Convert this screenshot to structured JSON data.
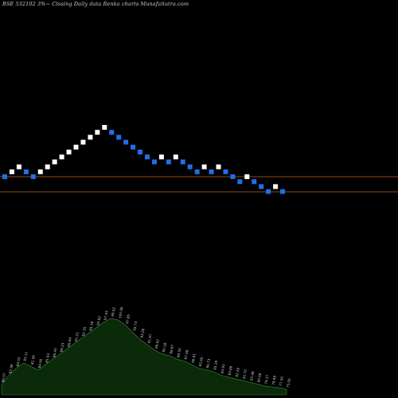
{
  "chart_data": {
    "type": "renko",
    "title": "BSE 532102  3%~  Closing Daily data  Renko  charts MunafaSutra.com",
    "colors": {
      "background": "#000000",
      "up_brick": "#ffffff",
      "down_brick": "#1e6fe8",
      "reference_line": "#c0621b",
      "volume_fill": "#0a2a0a",
      "volume_line": "#3a8a3a",
      "volume_label": "#d0d0d0"
    },
    "reference_lines": [
      {
        "name": "upper",
        "y": 0.0
      },
      {
        "name": "lower",
        "y": -1.0
      }
    ],
    "bricks": [
      {
        "dir": "down",
        "level": 0
      },
      {
        "dir": "up",
        "level": 1
      },
      {
        "dir": "up",
        "level": 2
      },
      {
        "dir": "down",
        "level": 1
      },
      {
        "dir": "down",
        "level": 0
      },
      {
        "dir": "up",
        "level": 1
      },
      {
        "dir": "up",
        "level": 2
      },
      {
        "dir": "up",
        "level": 3
      },
      {
        "dir": "up",
        "level": 4
      },
      {
        "dir": "up",
        "level": 5
      },
      {
        "dir": "up",
        "level": 6
      },
      {
        "dir": "up",
        "level": 7
      },
      {
        "dir": "up",
        "level": 8
      },
      {
        "dir": "up",
        "level": 9
      },
      {
        "dir": "up",
        "level": 10
      },
      {
        "dir": "down",
        "level": 9
      },
      {
        "dir": "down",
        "level": 8
      },
      {
        "dir": "down",
        "level": 7
      },
      {
        "dir": "down",
        "level": 6
      },
      {
        "dir": "down",
        "level": 5
      },
      {
        "dir": "down",
        "level": 4
      },
      {
        "dir": "down",
        "level": 3
      },
      {
        "dir": "up",
        "level": 4
      },
      {
        "dir": "down",
        "level": 3
      },
      {
        "dir": "up",
        "level": 4
      },
      {
        "dir": "down",
        "level": 3
      },
      {
        "dir": "down",
        "level": 2
      },
      {
        "dir": "down",
        "level": 1
      },
      {
        "dir": "up",
        "level": 2
      },
      {
        "dir": "down",
        "level": 1
      },
      {
        "dir": "up",
        "level": 2
      },
      {
        "dir": "down",
        "level": 1
      },
      {
        "dir": "down",
        "level": 0
      },
      {
        "dir": "down",
        "level": -1
      },
      {
        "dir": "up",
        "level": 0
      },
      {
        "dir": "down",
        "level": -1
      },
      {
        "dir": "down",
        "level": -2
      },
      {
        "dir": "down",
        "level": -3
      },
      {
        "dir": "up",
        "level": -2
      },
      {
        "dir": "down",
        "level": -3
      }
    ],
    "volume_profile": [
      12,
      22,
      30,
      36,
      32,
      28,
      34,
      40,
      46,
      52,
      58,
      64,
      70,
      76,
      82,
      86,
      84,
      78,
      70,
      62,
      56,
      50,
      46,
      44,
      40,
      38,
      34,
      30,
      28,
      26,
      22,
      20,
      18,
      16,
      14,
      12,
      10,
      9,
      8,
      6
    ],
    "volume_labels": [
      "86.07",
      "82.96",
      "84.02",
      "83.11",
      "81.58",
      "84.00",
      "85.63",
      "86.43",
      "88.23",
      "89.84",
      "91.21",
      "92.35",
      "94.18",
      "95.62",
      "97.43",
      "99.02",
      "100.96",
      "97.85",
      "95.73",
      "93.28",
      "91.97",
      "89.62",
      "90.18",
      "88.87",
      "89.50",
      "87.68",
      "86.61",
      "85.60",
      "86.73",
      "85.29",
      "84.91",
      "83.66",
      "82.29",
      "81.70",
      "82.48",
      "80.66",
      "79.27",
      "78.89",
      "77.50",
      "75.05"
    ]
  }
}
